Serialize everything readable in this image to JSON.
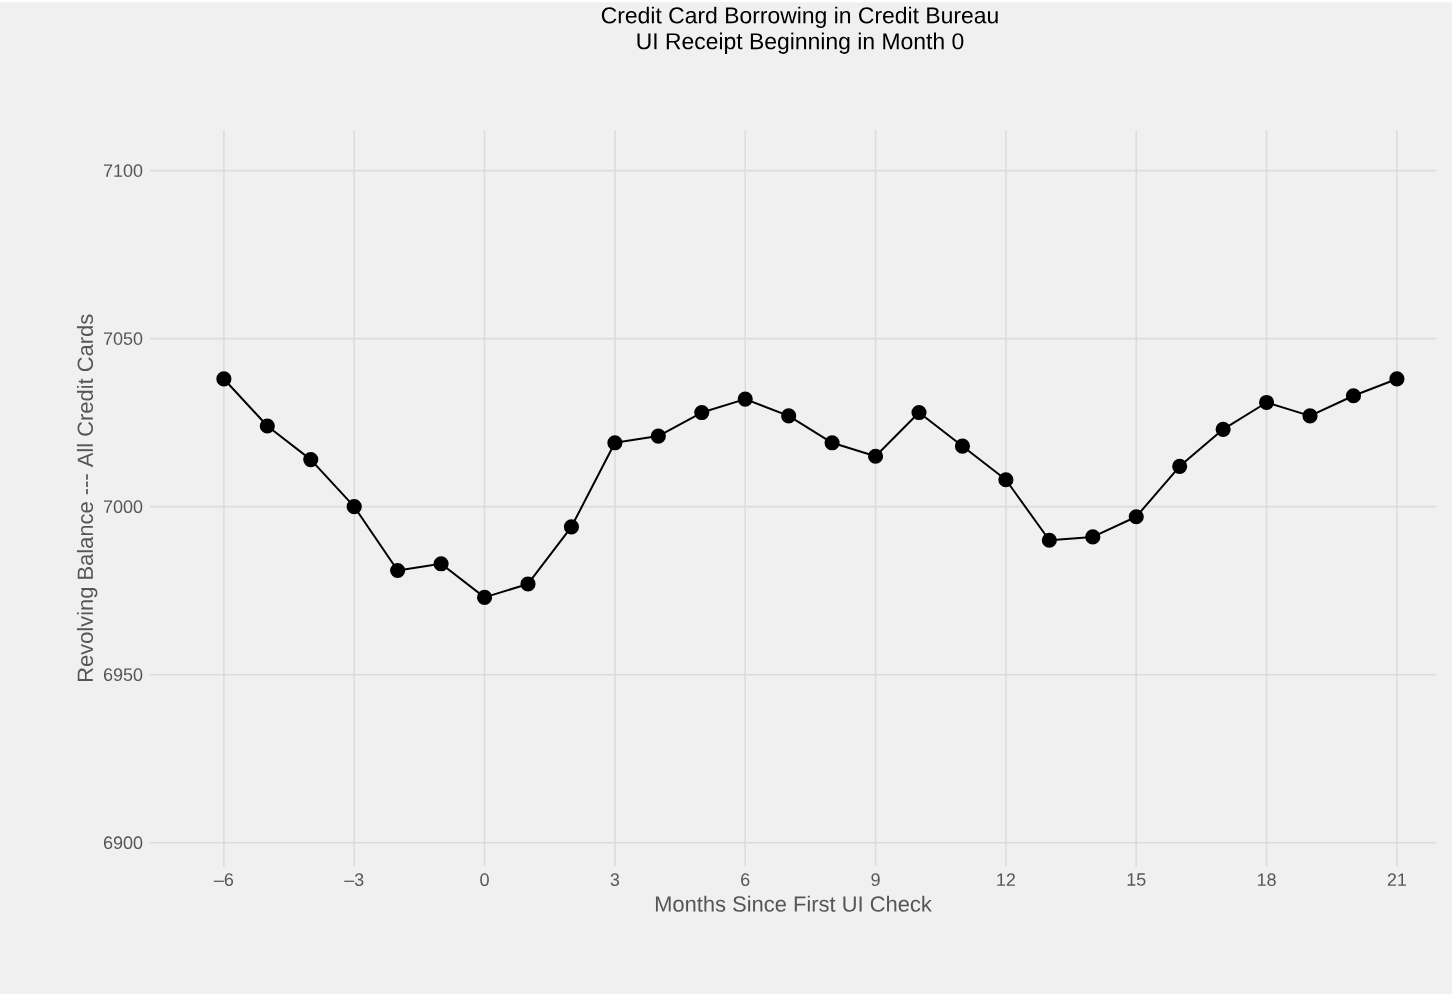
{
  "chart_data": {
    "type": "line",
    "title": "Credit Card Borrowing in Credit Bureau",
    "subtitle": "UI Receipt Beginning in Month 0",
    "xlabel": "Months Since First UI Check",
    "ylabel": "Revolving Balance --- All Credit Cards",
    "x": [
      -6,
      -5,
      -4,
      -3,
      -2,
      -1,
      0,
      1,
      2,
      3,
      4,
      5,
      6,
      7,
      8,
      9,
      10,
      11,
      12,
      13,
      14,
      15,
      16,
      17,
      18,
      19,
      20,
      21
    ],
    "series": [
      {
        "color": "#000000",
        "values": [
          7038,
          7024,
          7014,
          7000,
          6981,
          6983,
          6973,
          6977,
          6994,
          7019,
          7021,
          7028,
          7032,
          7027,
          7019,
          7015,
          7028,
          7018,
          7008,
          6990,
          6991,
          6997,
          7012,
          7023,
          7031,
          7027,
          7033,
          7038
        ]
      }
    ],
    "xlim": [
      -7.7,
      21.9
    ],
    "ylim": [
      6893,
      7112
    ],
    "xticks": [
      {
        "value": -6,
        "label": "–6"
      },
      {
        "value": -3,
        "label": "–3"
      },
      0,
      3,
      6,
      9,
      12,
      15,
      18,
      21
    ],
    "yticks": [
      6900,
      6950,
      7000,
      7050,
      7100
    ],
    "grid": true,
    "marker": "circle",
    "line_style": "solid"
  }
}
